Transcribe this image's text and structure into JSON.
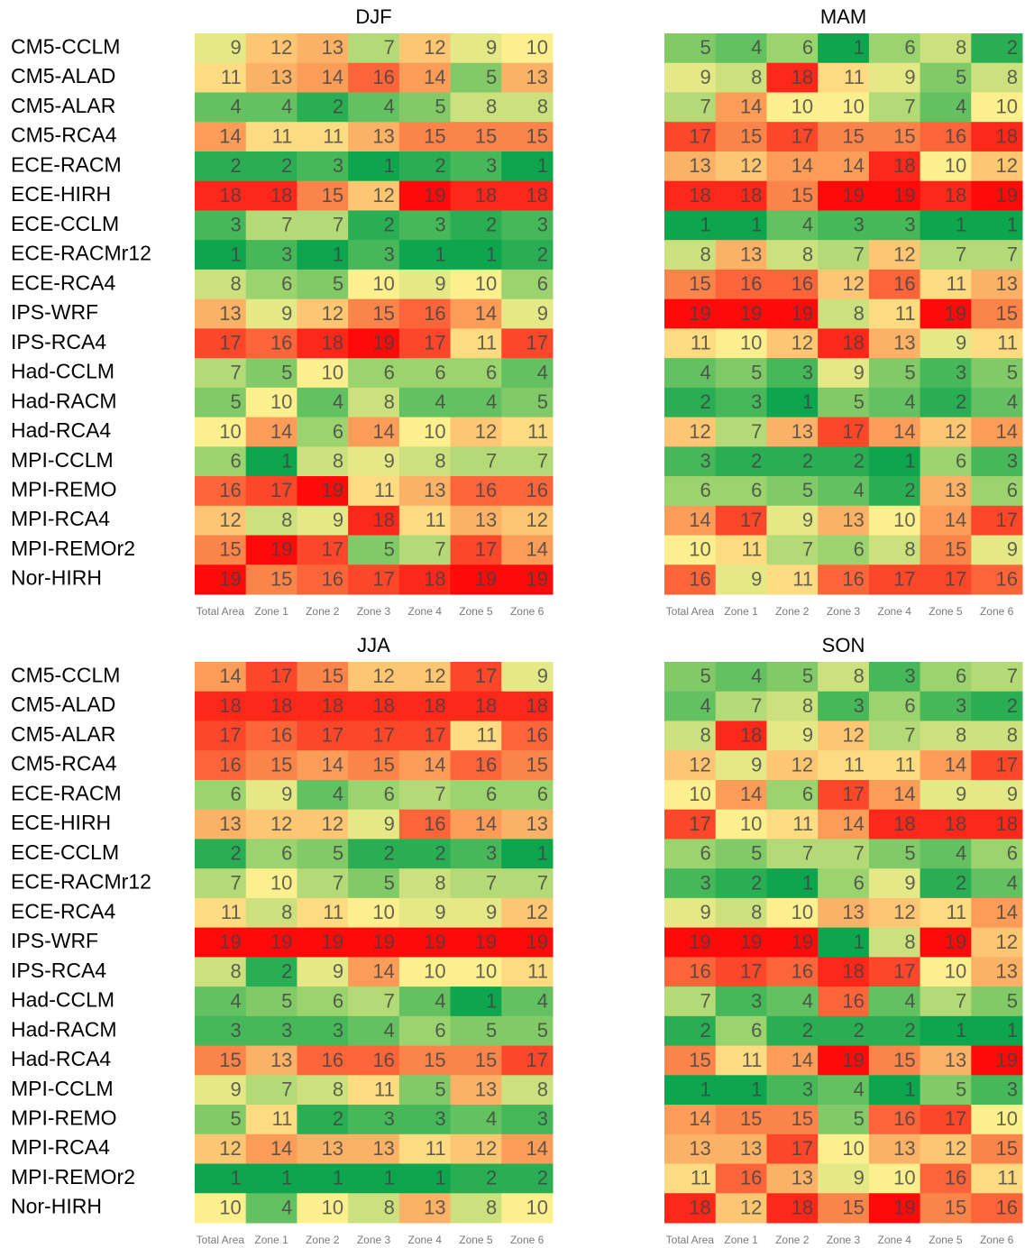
{
  "chart_data": [
    {
      "type": "heatmap",
      "title": "DJF",
      "rows": [
        "CM5-CCLM",
        "CM5-ALAD",
        "CM5-ALAR",
        "CM5-RCA4",
        "ECE-RACM",
        "ECE-HIRH",
        "ECE-CCLM",
        "ECE-RACMr12",
        "ECE-RCA4",
        "IPS-WRF",
        "IPS-RCA4",
        "Had-CCLM",
        "Had-RACM",
        "Had-RCA4",
        "MPI-CCLM",
        "MPI-REMO",
        "MPI-RCA4",
        "MPI-REMOr2",
        "Nor-HIRH"
      ],
      "columns": [
        "Total Area",
        "Zone 1",
        "Zone 2",
        "Zone 3",
        "Zone 4",
        "Zone 5",
        "Zone 6"
      ],
      "colors": [
        "#0da54e",
        "#8fcf6a",
        "#fcef8e",
        "#fb9352",
        "#ff0a0a"
      ],
      "values": [
        [
          9,
          12,
          13,
          7,
          12,
          9,
          10
        ],
        [
          11,
          13,
          14,
          16,
          14,
          5,
          13
        ],
        [
          4,
          4,
          2,
          4,
          5,
          8,
          8
        ],
        [
          14,
          11,
          11,
          13,
          15,
          15,
          15
        ],
        [
          2,
          2,
          3,
          1,
          2,
          3,
          1
        ],
        [
          18,
          18,
          15,
          12,
          19,
          18,
          18
        ],
        [
          3,
          7,
          7,
          2,
          3,
          2,
          3
        ],
        [
          1,
          3,
          1,
          3,
          1,
          1,
          2
        ],
        [
          8,
          6,
          5,
          10,
          9,
          10,
          6
        ],
        [
          13,
          9,
          12,
          15,
          16,
          14,
          9
        ],
        [
          17,
          16,
          18,
          19,
          17,
          11,
          17
        ],
        [
          7,
          5,
          10,
          6,
          6,
          6,
          4
        ],
        [
          5,
          10,
          4,
          8,
          4,
          4,
          5
        ],
        [
          10,
          14,
          6,
          14,
          10,
          12,
          11
        ],
        [
          6,
          1,
          8,
          9,
          8,
          7,
          7
        ],
        [
          16,
          17,
          19,
          11,
          13,
          16,
          16
        ],
        [
          12,
          8,
          9,
          18,
          11,
          13,
          12
        ],
        [
          15,
          19,
          17,
          5,
          7,
          17,
          14
        ],
        [
          19,
          15,
          16,
          17,
          18,
          19,
          19
        ]
      ]
    },
    {
      "type": "heatmap",
      "title": "MAM",
      "columns": [
        "Total Area",
        "Zone 1",
        "Zone 2",
        "Zone 3",
        "Zone 4",
        "Zone 5",
        "Zone 6"
      ],
      "colors": [
        "#0da54e",
        "#8fcf6a",
        "#fcef8e",
        "#fb9352",
        "#ff0a0a"
      ],
      "values": [
        [
          5,
          4,
          6,
          1,
          6,
          8,
          2
        ],
        [
          9,
          8,
          18,
          11,
          9,
          5,
          8
        ],
        [
          7,
          14,
          10,
          10,
          7,
          4,
          10
        ],
        [
          17,
          15,
          17,
          15,
          15,
          16,
          18
        ],
        [
          13,
          12,
          14,
          14,
          18,
          10,
          12
        ],
        [
          18,
          18,
          15,
          19,
          19,
          18,
          19
        ],
        [
          1,
          1,
          4,
          3,
          3,
          1,
          1
        ],
        [
          8,
          13,
          8,
          7,
          12,
          7,
          7
        ],
        [
          15,
          16,
          16,
          12,
          16,
          11,
          13
        ],
        [
          19,
          19,
          19,
          8,
          11,
          19,
          15
        ],
        [
          11,
          10,
          12,
          18,
          13,
          9,
          11
        ],
        [
          4,
          5,
          3,
          9,
          5,
          3,
          5
        ],
        [
          2,
          3,
          1,
          5,
          4,
          2,
          4
        ],
        [
          12,
          7,
          13,
          17,
          14,
          12,
          14
        ],
        [
          3,
          2,
          2,
          2,
          1,
          6,
          3
        ],
        [
          6,
          6,
          5,
          4,
          2,
          13,
          6
        ],
        [
          14,
          17,
          9,
          13,
          10,
          14,
          17
        ],
        [
          10,
          11,
          7,
          6,
          8,
          15,
          9
        ],
        [
          16,
          9,
          11,
          16,
          17,
          17,
          16
        ]
      ]
    },
    {
      "type": "heatmap",
      "title": "JJA",
      "rows": [
        "CM5-CCLM",
        "CM5-ALAD",
        "CM5-ALAR",
        "CM5-RCA4",
        "ECE-RACM",
        "ECE-HIRH",
        "ECE-CCLM",
        "ECE-RACMr12",
        "ECE-RCA4",
        "IPS-WRF",
        "IPS-RCA4",
        "Had-CCLM",
        "Had-RACM",
        "Had-RCA4",
        "MPI-CCLM",
        "MPI-REMO",
        "MPI-RCA4",
        "MPI-REMOr2",
        "Nor-HIRH"
      ],
      "columns": [
        "Total Area",
        "Zone 1",
        "Zone 2",
        "Zone 3",
        "Zone 4",
        "Zone 5",
        "Zone 6"
      ],
      "colors": [
        "#0da54e",
        "#8fcf6a",
        "#fcef8e",
        "#fb9352",
        "#ff0a0a"
      ],
      "values": [
        [
          14,
          17,
          15,
          12,
          12,
          17,
          9
        ],
        [
          18,
          18,
          18,
          18,
          18,
          18,
          18
        ],
        [
          17,
          16,
          17,
          17,
          17,
          11,
          16
        ],
        [
          16,
          15,
          14,
          15,
          14,
          16,
          15
        ],
        [
          6,
          9,
          4,
          6,
          7,
          6,
          6
        ],
        [
          13,
          12,
          12,
          9,
          16,
          14,
          13
        ],
        [
          2,
          6,
          5,
          2,
          2,
          3,
          1
        ],
        [
          7,
          10,
          7,
          5,
          8,
          7,
          7
        ],
        [
          11,
          8,
          11,
          10,
          9,
          9,
          12
        ],
        [
          19,
          19,
          19,
          19,
          19,
          19,
          19
        ],
        [
          8,
          2,
          9,
          14,
          10,
          10,
          11
        ],
        [
          4,
          5,
          6,
          7,
          4,
          1,
          4
        ],
        [
          3,
          3,
          3,
          4,
          6,
          5,
          5
        ],
        [
          15,
          13,
          16,
          16,
          15,
          15,
          17
        ],
        [
          9,
          7,
          8,
          11,
          5,
          13,
          8
        ],
        [
          5,
          11,
          2,
          3,
          3,
          4,
          3
        ],
        [
          12,
          14,
          13,
          13,
          11,
          12,
          14
        ],
        [
          1,
          1,
          1,
          1,
          1,
          2,
          2
        ],
        [
          10,
          4,
          10,
          8,
          13,
          8,
          10
        ]
      ]
    },
    {
      "type": "heatmap",
      "title": "SON",
      "columns": [
        "Total Area",
        "Zone 1",
        "Zone 2",
        "Zone 3",
        "Zone 4",
        "Zone 5",
        "Zone 6"
      ],
      "colors": [
        "#0da54e",
        "#8fcf6a",
        "#fcef8e",
        "#fb9352",
        "#ff0a0a"
      ],
      "values": [
        [
          5,
          4,
          5,
          8,
          3,
          6,
          7
        ],
        [
          4,
          7,
          8,
          3,
          6,
          3,
          2
        ],
        [
          8,
          18,
          9,
          12,
          7,
          8,
          8
        ],
        [
          12,
          9,
          12,
          11,
          11,
          14,
          17
        ],
        [
          10,
          14,
          6,
          17,
          14,
          9,
          9
        ],
        [
          17,
          10,
          11,
          14,
          18,
          18,
          18
        ],
        [
          6,
          5,
          7,
          7,
          5,
          4,
          6
        ],
        [
          3,
          2,
          1,
          6,
          9,
          2,
          4
        ],
        [
          9,
          8,
          10,
          13,
          12,
          11,
          14
        ],
        [
          19,
          19,
          19,
          1,
          8,
          19,
          12
        ],
        [
          16,
          17,
          16,
          18,
          17,
          10,
          13
        ],
        [
          7,
          3,
          4,
          16,
          4,
          7,
          5
        ],
        [
          2,
          6,
          2,
          2,
          2,
          1,
          1
        ],
        [
          15,
          11,
          14,
          19,
          15,
          13,
          19
        ],
        [
          1,
          1,
          3,
          4,
          1,
          5,
          3
        ],
        [
          14,
          15,
          15,
          5,
          16,
          17,
          10
        ],
        [
          13,
          13,
          17,
          10,
          13,
          12,
          15
        ],
        [
          11,
          16,
          13,
          9,
          10,
          16,
          11
        ],
        [
          18,
          12,
          18,
          15,
          19,
          15,
          16
        ]
      ]
    }
  ]
}
